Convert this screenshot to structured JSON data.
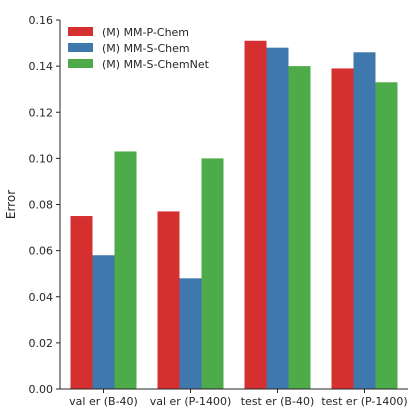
{
  "chart_data": {
    "type": "bar",
    "title": "",
    "xlabel": "",
    "ylabel": "Error",
    "ylim": [
      0,
      0.16
    ],
    "yticks": [
      "0.00",
      "0.02",
      "0.04",
      "0.06",
      "0.08",
      "0.10",
      "0.12",
      "0.14",
      "0.16"
    ],
    "categories": [
      "val  er (B-40)",
      "val  er (P-1400)",
      "test  er (B-40)",
      "test  er (P-1400)"
    ],
    "series": [
      {
        "name": "(M) MM-P-Chem",
        "color": "#d62f2f",
        "values": [
          0.075,
          0.077,
          0.151,
          0.139
        ]
      },
      {
        "name": "(M) MM-S-Chem",
        "color": "#3e78ad",
        "values": [
          0.058,
          0.048,
          0.148,
          0.146
        ]
      },
      {
        "name": "(M) MM-S-ChemNet",
        "color": "#4eab4a",
        "values": [
          0.103,
          0.1,
          0.14,
          0.133
        ]
      }
    ],
    "legend_position": "top-left",
    "grid": false
  }
}
